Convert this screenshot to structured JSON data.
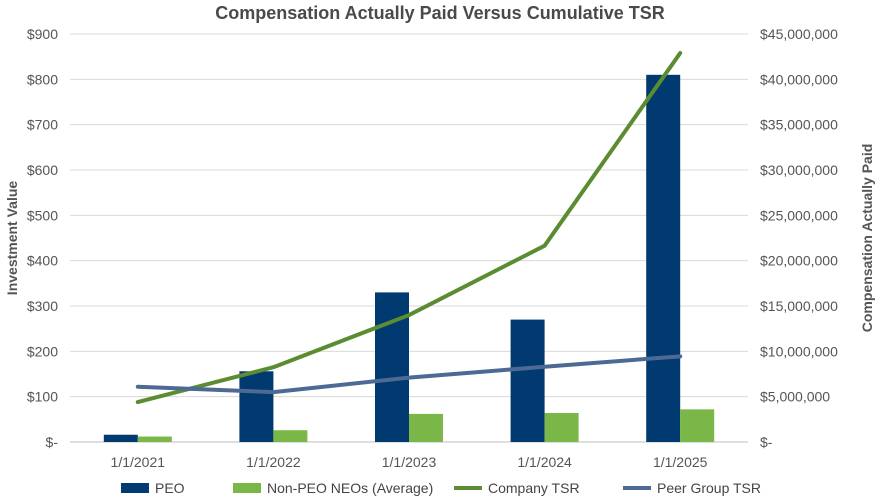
{
  "chart_data": {
    "type": "bar",
    "title": "Compensation Actually Paid Versus Cumulative TSR",
    "categories": [
      "1/1/2021",
      "1/1/2022",
      "1/1/2023",
      "1/1/2024",
      "1/1/2025"
    ],
    "y_left": {
      "label": "Investment Value",
      "ylim": [
        0,
        900
      ],
      "ticks": [
        0,
        100,
        200,
        300,
        400,
        500,
        600,
        700,
        800,
        900
      ],
      "tick_labels": [
        "$-",
        "$100",
        "$200",
        "$300",
        "$400",
        "$500",
        "$600",
        "$700",
        "$800",
        "$900"
      ]
    },
    "y_right": {
      "label": "Compensation Actually Paid",
      "ylim": [
        0,
        45000000
      ],
      "ticks": [
        0,
        5000000,
        10000000,
        15000000,
        20000000,
        25000000,
        30000000,
        35000000,
        40000000,
        45000000
      ],
      "tick_labels": [
        "$-",
        "$5,000,000",
        "$10,000,000",
        "$15,000,000",
        "$20,000,000",
        "$25,000,000",
        "$30,000,000",
        "$35,000,000",
        "$40,000,000",
        "$45,000,000"
      ]
    },
    "series": [
      {
        "name": "PEO",
        "type": "bar",
        "axis": "right",
        "color": "#003a70",
        "values": [
          800000,
          7800000,
          16500000,
          13500000,
          40500000
        ]
      },
      {
        "name": "Non-PEO NEOs (Average)",
        "type": "bar",
        "axis": "right",
        "color": "#7ab648",
        "values": [
          600000,
          1300000,
          3100000,
          3200000,
          3600000
        ]
      },
      {
        "name": "Company TSR",
        "type": "line",
        "axis": "left",
        "color": "#5b8c32",
        "values": [
          88,
          165,
          280,
          433,
          858
        ]
      },
      {
        "name": "Peer Group TSR",
        "type": "line",
        "axis": "left",
        "color": "#4c6a94",
        "values": [
          122,
          110,
          142,
          166,
          189
        ]
      }
    ],
    "grid": true,
    "legend_position": "bottom"
  }
}
